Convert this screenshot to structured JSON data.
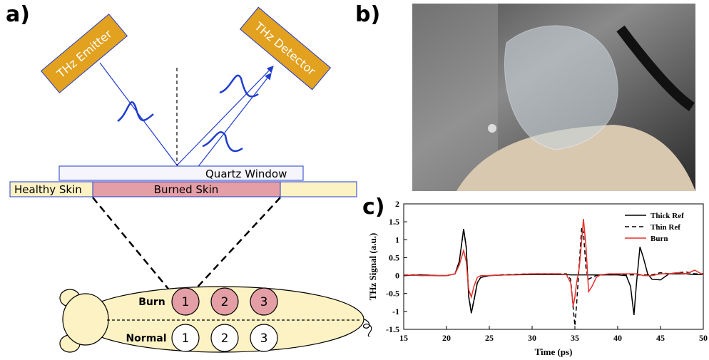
{
  "diagram": {
    "panel_labels": [
      "a)",
      "b)",
      "c)"
    ],
    "emitter": "THz Emitter",
    "detector": "THz Detector",
    "window": "Quartz Window",
    "healthy": "Healthy Skin",
    "burned": "Burned Skin",
    "rows": [
      {
        "label": "Burn",
        "sites": [
          "1",
          "2",
          "3"
        ]
      },
      {
        "label": "Normal",
        "sites": [
          "1",
          "2",
          "3"
        ]
      }
    ]
  },
  "chart_data": {
    "type": "line",
    "xlabel": "Time (ps)",
    "ylabel": "THz Signal (a.u.)",
    "x": [
      15,
      17,
      19,
      20,
      21,
      21.5,
      22,
      22.3,
      22.6,
      22.9,
      23.2,
      23.6,
      24,
      25,
      27,
      30,
      33,
      34,
      34.5,
      34.8,
      35,
      35.2,
      35.5,
      35.8,
      36,
      36.3,
      36.6,
      37,
      37.5,
      38,
      39,
      40,
      41,
      41.5,
      41.9,
      42.2,
      42.6,
      43,
      43.5,
      44,
      45,
      46,
      47,
      48,
      49,
      50
    ],
    "series": [
      {
        "name": "Thick Ref",
        "color": "#000000",
        "style": "solid",
        "values": [
          0,
          0.02,
          0,
          0,
          0.05,
          0.4,
          1.3,
          0.8,
          -0.6,
          -1.05,
          -0.7,
          -0.2,
          -0.05,
          0,
          0.02,
          0.03,
          0.03,
          0.03,
          0.02,
          0.02,
          0.02,
          0.02,
          0.02,
          0.02,
          0.02,
          0.02,
          0.02,
          0.02,
          0.02,
          0.02,
          0.02,
          0.02,
          0,
          -0.3,
          -1.1,
          -0.2,
          0.8,
          0.5,
          0.05,
          -0.1,
          -0.12,
          0.05,
          0.05,
          0.05,
          0.03,
          0.03
        ]
      },
      {
        "name": "Thin Ref",
        "color": "#000000",
        "style": "dashed",
        "values": [
          0.02,
          0.02,
          0,
          0,
          0.05,
          0.4,
          1.3,
          0.8,
          -0.6,
          -1.0,
          -0.7,
          -0.2,
          -0.05,
          0,
          0.03,
          0.05,
          0.05,
          0.05,
          -0.1,
          -0.9,
          -1.4,
          -0.8,
          0.3,
          1.35,
          1.2,
          0.2,
          -0.1,
          -0.05,
          0,
          0.03,
          0.03,
          0.03,
          0.02,
          0.02,
          0.02,
          0.02,
          0.02,
          0.02,
          0.02,
          0.02,
          0.08,
          0.05,
          0.08,
          0.1,
          0.05,
          0.05
        ]
      },
      {
        "name": "Burn",
        "color": "#e8302a",
        "style": "solid",
        "values": [
          0.02,
          0,
          0,
          0,
          0.05,
          0.3,
          0.7,
          0.4,
          -0.4,
          -0.6,
          -0.3,
          -0.05,
          0,
          0,
          0.02,
          0.05,
          0.05,
          0.03,
          -0.2,
          -0.85,
          -0.6,
          -0.2,
          0.2,
          1.0,
          1.58,
          0.8,
          -0.45,
          -0.3,
          -0.05,
          0.02,
          0.05,
          0.05,
          0.05,
          0.05,
          0.05,
          0.05,
          0.03,
          0,
          0,
          0,
          0.05,
          0.05,
          0.08,
          0.05,
          0.15,
          0.02
        ]
      }
    ],
    "xlim": [
      15,
      50
    ],
    "xticks": [
      15,
      20,
      25,
      30,
      35,
      40,
      45,
      50
    ],
    "ylim": [
      -1.5,
      2
    ],
    "yticks": [
      -1.5,
      -1,
      -0.5,
      0,
      0.5,
      1,
      1.5,
      2
    ],
    "legend": "upper right"
  }
}
